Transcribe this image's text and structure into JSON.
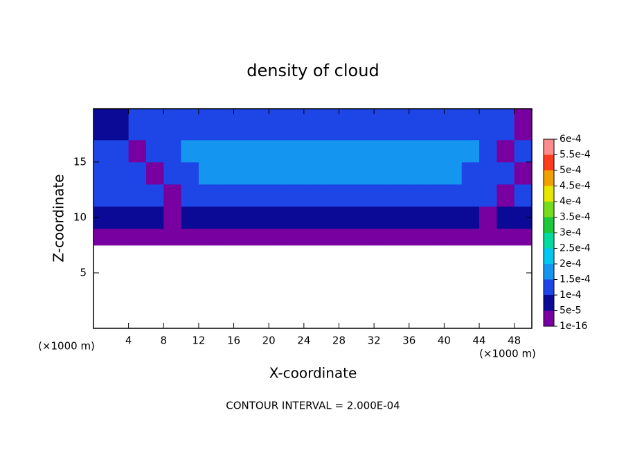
{
  "chart_data": {
    "type": "contour",
    "title": "density of cloud",
    "x_label": "X-coordinate",
    "y_label": "Z-coordinate",
    "x_unit_left": "(×1000 m)",
    "x_unit_right": "(×1000 m)",
    "footer": "CONTOUR INTERVAL = 2.000E-04",
    "xlim": [
      0,
      50
    ],
    "ylim": [
      0,
      19.8
    ],
    "xticks": [
      4,
      8,
      12,
      16,
      20,
      24,
      28,
      32,
      36,
      40,
      44,
      48
    ],
    "yticks": [
      5,
      10,
      15
    ],
    "x_edges": [
      0,
      2,
      4,
      6,
      8,
      10,
      12,
      14,
      16,
      18,
      20,
      22,
      24,
      26,
      28,
      30,
      32,
      34,
      36,
      38,
      40,
      42,
      44,
      46,
      48,
      50
    ],
    "y_edges": [
      7.5,
      9,
      11,
      13,
      15,
      17,
      19.8
    ],
    "values": [
      [
        3e-05,
        3e-05,
        3e-05,
        3e-05,
        3e-05,
        3e-05,
        3e-05,
        3e-05,
        3e-05,
        3e-05,
        3e-05,
        3e-05,
        3e-05,
        3e-05,
        3e-05,
        3e-05,
        3e-05,
        3e-05,
        3e-05,
        3e-05,
        3e-05,
        3e-05,
        3e-05,
        3e-05,
        3e-05
      ],
      [
        7e-05,
        7e-05,
        7e-05,
        7e-05,
        4e-05,
        7e-05,
        7e-05,
        8e-05,
        8e-05,
        8e-05,
        8e-05,
        8e-05,
        8e-05,
        8e-05,
        8e-05,
        8e-05,
        8e-05,
        8e-05,
        8e-05,
        8e-05,
        7e-05,
        7e-05,
        3e-05,
        7e-05,
        7e-05
      ],
      [
        0.00012,
        0.00012,
        0.00012,
        0.00012,
        4e-05,
        0.00012,
        0.00012,
        0.00012,
        0.00012,
        0.00012,
        0.00012,
        0.00012,
        0.00012,
        0.00012,
        0.00012,
        0.00012,
        0.00012,
        0.00012,
        0.00012,
        0.00012,
        0.00012,
        0.00012,
        0.00012,
        3e-05,
        0.00012
      ],
      [
        0.00013,
        0.00013,
        0.00013,
        4e-05,
        0.00013,
        0.00013,
        0.00016,
        0.00016,
        0.00016,
        0.00016,
        0.00016,
        0.00016,
        0.00016,
        0.00016,
        0.00016,
        0.00016,
        0.00016,
        0.00016,
        0.00016,
        0.00016,
        0.00016,
        0.00013,
        0.00013,
        0.00013,
        4e-05
      ],
      [
        0.00012,
        0.00012,
        3e-05,
        0.00012,
        0.00012,
        0.00017,
        0.00017,
        0.00017,
        0.00017,
        0.00017,
        0.00017,
        0.00017,
        0.00017,
        0.00017,
        0.00017,
        0.00017,
        0.00017,
        0.00017,
        0.00017,
        0.00017,
        0.00017,
        0.00017,
        0.00012,
        3e-05,
        0.00012
      ],
      [
        8e-05,
        8e-05,
        0.00012,
        0.00012,
        0.00014,
        0.00014,
        0.00014,
        0.00014,
        0.00014,
        0.00014,
        0.00014,
        0.00014,
        0.00014,
        0.00014,
        0.00014,
        0.00014,
        0.00014,
        0.00014,
        0.00014,
        0.00014,
        0.00014,
        0.00014,
        0.00012,
        0.0001,
        3e-05
      ]
    ],
    "levels": [
      {
        "value": 1e-16,
        "label": "1e-16"
      },
      {
        "value": 5e-05,
        "label": "5e-5"
      },
      {
        "value": 0.0001,
        "label": "1e-4"
      },
      {
        "value": 0.00015,
        "label": "1.5e-4"
      },
      {
        "value": 0.0002,
        "label": "2e-4"
      },
      {
        "value": 0.00025,
        "label": "2.5e-4"
      },
      {
        "value": 0.0003,
        "label": "3e-4"
      },
      {
        "value": 0.00035,
        "label": "3.5e-4"
      },
      {
        "value": 0.0004,
        "label": "4e-4"
      },
      {
        "value": 0.00045,
        "label": "4.5e-4"
      },
      {
        "value": 0.0005,
        "label": "5e-4"
      },
      {
        "value": 0.00055,
        "label": "5.5e-4"
      },
      {
        "value": 0.0006,
        "label": "6e-4"
      }
    ],
    "colors": [
      "#7800a0",
      "#0a0a96",
      "#1e46e6",
      "#1496f0",
      "#00c8f0",
      "#00dca0",
      "#1ec83c",
      "#78dc1e",
      "#e6e600",
      "#f0a000",
      "#ff3c1e",
      "#ff8c8c"
    ]
  }
}
